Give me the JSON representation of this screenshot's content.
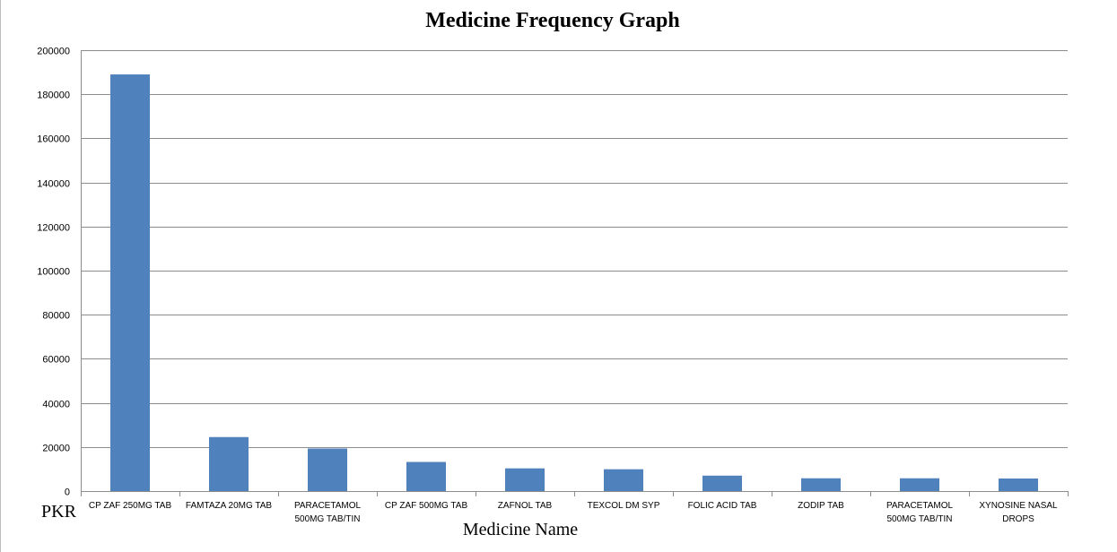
{
  "chart_data": {
    "type": "bar",
    "title": "Medicine Frequency Graph",
    "xlabel": "Medicine Name",
    "ylabel": "PKR",
    "ylim": [
      0,
      200000
    ],
    "yticks": [
      "0",
      "20000",
      "40000",
      "60000",
      "80000",
      "100000",
      "120000",
      "140000",
      "160000",
      "180000",
      "200000"
    ],
    "grid": true,
    "bar_color": "#4f81bd",
    "categories": [
      [
        "CP ZAF 250MG TAB"
      ],
      [
        "FAMTAZA 20MG TAB"
      ],
      [
        "PARACETAMOL",
        "500MG TAB/TIN"
      ],
      [
        "CP ZAF 500MG TAB"
      ],
      [
        "ZAFNOL TAB"
      ],
      [
        "TEXCOL DM SYP"
      ],
      [
        "FOLIC ACID TAB"
      ],
      [
        "ZODIP TAB"
      ],
      [
        "PARACETAMOL",
        "500MG TAB/TIN"
      ],
      [
        "XYNOSINE NASAL",
        "DROPS"
      ]
    ],
    "values": [
      189000,
      24500,
      19300,
      13200,
      10300,
      9900,
      7000,
      5800,
      5800,
      5700
    ]
  }
}
